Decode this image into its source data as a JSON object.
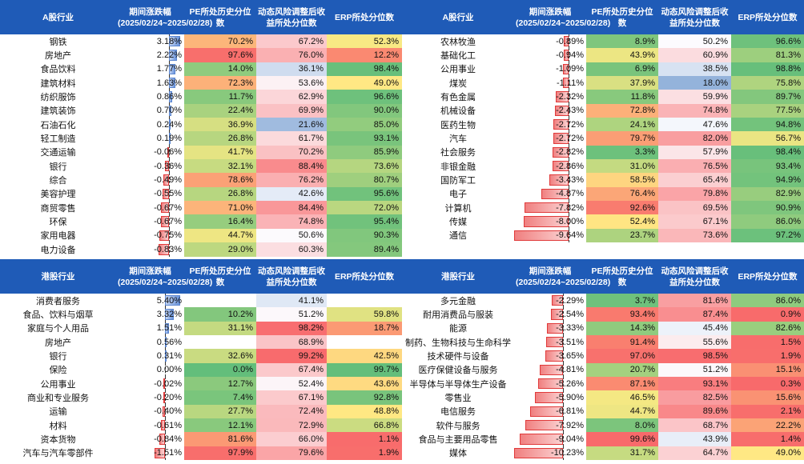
{
  "headers": {
    "a_share": [
      "A股行业",
      "期间涨跌幅\n(2025/02/24~2025/02/28)",
      "PE所处历史分位数",
      "动态风险调整后收益所处分位数",
      "ERP所处分位数"
    ],
    "hk_share": [
      "港股行业",
      "期间涨跌幅\n(2025/02/24~2025/02/28)",
      "PE所处历史分位数",
      "动态风险调整后收益所处分位数",
      "ERP所处分位数"
    ]
  },
  "chg_scale": {
    "a_max": 9.64,
    "hk_max": 10.2
  },
  "a_left": [
    {
      "industry": "钢铁",
      "chg": 3.18,
      "chg_label": "3.18%",
      "pe": "70.2%",
      "risk": "67.2%",
      "erp": "52.3%"
    },
    {
      "industry": "房地产",
      "chg": 2.22,
      "chg_label": "2.22%",
      "pe": "97.6%",
      "risk": "76.0%",
      "erp": "12.2%"
    },
    {
      "industry": "食品饮料",
      "chg": 1.77,
      "chg_label": "1.77%",
      "pe": "14.0%",
      "risk": "36.1%",
      "erp": "98.4%"
    },
    {
      "industry": "建筑材料",
      "chg": 1.63,
      "chg_label": "1.63%",
      "pe": "72.3%",
      "risk": "53.6%",
      "erp": "49.0%"
    },
    {
      "industry": "纺织服饰",
      "chg": 0.86,
      "chg_label": "0.86%",
      "pe": "11.7%",
      "risk": "62.9%",
      "erp": "96.6%"
    },
    {
      "industry": "建筑装饰",
      "chg": 0.7,
      "chg_label": "0.70%",
      "pe": "22.4%",
      "risk": "69.9%",
      "erp": "90.0%"
    },
    {
      "industry": "石油石化",
      "chg": 0.24,
      "chg_label": "0.24%",
      "pe": "36.9%",
      "risk": "21.6%",
      "erp": "85.0%"
    },
    {
      "industry": "轻工制造",
      "chg": 0.19,
      "chg_label": "0.19%",
      "pe": "26.8%",
      "risk": "61.7%",
      "erp": "93.1%"
    },
    {
      "industry": "交通运输",
      "chg": -0.06,
      "chg_label": "-0.06%",
      "pe": "41.7%",
      "risk": "70.2%",
      "erp": "85.9%"
    },
    {
      "industry": "银行",
      "chg": -0.36,
      "chg_label": "-0.36%",
      "pe": "32.1%",
      "risk": "88.4%",
      "erp": "73.6%"
    },
    {
      "industry": "综合",
      "chg": -0.49,
      "chg_label": "-0.49%",
      "pe": "78.6%",
      "risk": "76.2%",
      "erp": "80.7%"
    },
    {
      "industry": "美容护理",
      "chg": -0.55,
      "chg_label": "-0.55%",
      "pe": "26.8%",
      "risk": "42.6%",
      "erp": "95.6%"
    },
    {
      "industry": "商贸零售",
      "chg": -0.67,
      "chg_label": "-0.67%",
      "pe": "71.0%",
      "risk": "84.4%",
      "erp": "72.0%"
    },
    {
      "industry": "环保",
      "chg": -0.67,
      "chg_label": "-0.67%",
      "pe": "16.4%",
      "risk": "74.8%",
      "erp": "95.4%"
    },
    {
      "industry": "家用电器",
      "chg": -0.75,
      "chg_label": "-0.75%",
      "pe": "44.7%",
      "risk": "50.6%",
      "erp": "90.3%"
    },
    {
      "industry": "电力设备",
      "chg": -0.83,
      "chg_label": "-0.83%",
      "pe": "29.0%",
      "risk": "60.3%",
      "erp": "89.4%"
    }
  ],
  "a_right": [
    {
      "industry": "农林牧渔",
      "chg": -0.89,
      "chg_label": "-0.89%",
      "pe": "8.9%",
      "risk": "50.2%",
      "erp": "96.6%"
    },
    {
      "industry": "基础化工",
      "chg": -0.94,
      "chg_label": "-0.94%",
      "pe": "43.9%",
      "risk": "60.9%",
      "erp": "81.3%"
    },
    {
      "industry": "公用事业",
      "chg": -1.09,
      "chg_label": "-1.09%",
      "pe": "6.9%",
      "risk": "38.5%",
      "erp": "98.8%"
    },
    {
      "industry": "煤炭",
      "chg": -1.11,
      "chg_label": "-1.11%",
      "pe": "37.9%",
      "risk": "18.0%",
      "erp": "75.8%"
    },
    {
      "industry": "有色金属",
      "chg": -2.32,
      "chg_label": "-2.32%",
      "pe": "11.8%",
      "risk": "59.9%",
      "erp": "89.7%"
    },
    {
      "industry": "机械设备",
      "chg": -2.43,
      "chg_label": "-2.43%",
      "pe": "72.8%",
      "risk": "74.8%",
      "erp": "77.5%"
    },
    {
      "industry": "医药生物",
      "chg": -2.72,
      "chg_label": "-2.72%",
      "pe": "24.1%",
      "risk": "47.6%",
      "erp": "94.8%"
    },
    {
      "industry": "汽车",
      "chg": -2.72,
      "chg_label": "-2.72%",
      "pe": "79.7%",
      "risk": "82.0%",
      "erp": "56.7%"
    },
    {
      "industry": "社会服务",
      "chg": -2.82,
      "chg_label": "-2.82%",
      "pe": "3.3%",
      "risk": "57.9%",
      "erp": "98.4%"
    },
    {
      "industry": "非银金融",
      "chg": -2.86,
      "chg_label": "-2.86%",
      "pe": "31.0%",
      "risk": "76.5%",
      "erp": "93.4%"
    },
    {
      "industry": "国防军工",
      "chg": -3.43,
      "chg_label": "-3.43%",
      "pe": "58.5%",
      "risk": "65.4%",
      "erp": "94.9%"
    },
    {
      "industry": "电子",
      "chg": -4.87,
      "chg_label": "-4.87%",
      "pe": "76.4%",
      "risk": "79.8%",
      "erp": "82.9%"
    },
    {
      "industry": "计算机",
      "chg": -7.82,
      "chg_label": "-7.82%",
      "pe": "92.6%",
      "risk": "69.5%",
      "erp": "90.9%"
    },
    {
      "industry": "传媒",
      "chg": -8.0,
      "chg_label": "-8.00%",
      "pe": "52.4%",
      "risk": "67.1%",
      "erp": "86.0%"
    },
    {
      "industry": "通信",
      "chg": -9.64,
      "chg_label": "-9.64%",
      "pe": "23.7%",
      "risk": "73.6%",
      "erp": "97.2%"
    }
  ],
  "hk_left": [
    {
      "industry": "消费者服务",
      "chg": 5.4,
      "chg_label": "5.40%",
      "pe": "",
      "risk": "41.1%",
      "erp": ""
    },
    {
      "industry": "食品、饮料与烟草",
      "chg": 3.32,
      "chg_label": "3.32%",
      "pe": "10.2%",
      "risk": "51.2%",
      "erp": "59.8%"
    },
    {
      "industry": "家庭与个人用品",
      "chg": 1.51,
      "chg_label": "1.51%",
      "pe": "31.1%",
      "risk": "98.2%",
      "erp": "18.7%"
    },
    {
      "industry": "房地产",
      "chg": 0.56,
      "chg_label": "0.56%",
      "pe": "",
      "risk": "68.9%",
      "erp": ""
    },
    {
      "industry": "银行",
      "chg": 0.31,
      "chg_label": "0.31%",
      "pe": "32.6%",
      "risk": "99.2%",
      "erp": "42.5%"
    },
    {
      "industry": "保险",
      "chg": 0.0,
      "chg_label": "0.00%",
      "pe": "0.0%",
      "risk": "67.4%",
      "erp": "99.7%"
    },
    {
      "industry": "公用事业",
      "chg": -0.02,
      "chg_label": "-0.02%",
      "pe": "12.7%",
      "risk": "52.4%",
      "erp": "43.6%"
    },
    {
      "industry": "商业和专业服务",
      "chg": -0.2,
      "chg_label": "-0.20%",
      "pe": "7.4%",
      "risk": "67.1%",
      "erp": "92.8%"
    },
    {
      "industry": "运输",
      "chg": -0.4,
      "chg_label": "-0.40%",
      "pe": "27.7%",
      "risk": "72.4%",
      "erp": "48.8%"
    },
    {
      "industry": "材料",
      "chg": -0.61,
      "chg_label": "-0.61%",
      "pe": "12.1%",
      "risk": "72.9%",
      "erp": "66.8%"
    },
    {
      "industry": "资本货物",
      "chg": -0.84,
      "chg_label": "-0.84%",
      "pe": "81.6%",
      "risk": "66.0%",
      "erp": "1.1%"
    },
    {
      "industry": "汽车与汽车零部件",
      "chg": -1.51,
      "chg_label": "-1.51%",
      "pe": "97.9%",
      "risk": "79.6%",
      "erp": "1.9%"
    }
  ],
  "hk_right": [
    {
      "industry": "多元金融",
      "chg": -2.29,
      "chg_label": "-2.29%",
      "pe": "3.7%",
      "risk": "81.6%",
      "erp": "86.0%"
    },
    {
      "industry": "耐用消费品与服装",
      "chg": -2.54,
      "chg_label": "-2.54%",
      "pe": "93.4%",
      "risk": "87.4%",
      "erp": "0.9%"
    },
    {
      "industry": "能源",
      "chg": -3.33,
      "chg_label": "-3.33%",
      "pe": "14.3%",
      "risk": "45.4%",
      "erp": "82.6%"
    },
    {
      "industry": "制药、生物科技与生命科学",
      "chg": -3.51,
      "chg_label": "-3.51%",
      "pe": "91.4%",
      "risk": "55.6%",
      "erp": "1.5%"
    },
    {
      "industry": "技术硬件与设备",
      "chg": -3.65,
      "chg_label": "-3.65%",
      "pe": "97.0%",
      "risk": "98.5%",
      "erp": "1.9%"
    },
    {
      "industry": "医疗保健设备与服务",
      "chg": -4.81,
      "chg_label": "-4.81%",
      "pe": "20.7%",
      "risk": "51.2%",
      "erp": "15.1%"
    },
    {
      "industry": "半导体与半导体生产设备",
      "chg": -5.26,
      "chg_label": "-5.26%",
      "pe": "87.1%",
      "risk": "93.1%",
      "erp": "0.3%"
    },
    {
      "industry": "零售业",
      "chg": -5.9,
      "chg_label": "-5.90%",
      "pe": "46.5%",
      "risk": "82.5%",
      "erp": "15.6%"
    },
    {
      "industry": "电信服务",
      "chg": -6.81,
      "chg_label": "-6.81%",
      "pe": "44.7%",
      "risk": "89.6%",
      "erp": "2.1%"
    },
    {
      "industry": "软件与服务",
      "chg": -7.92,
      "chg_label": "-7.92%",
      "pe": "8.0%",
      "risk": "68.7%",
      "erp": "22.2%"
    },
    {
      "industry": "食品与主要用品零售",
      "chg": -9.04,
      "chg_label": "-9.04%",
      "pe": "99.6%",
      "risk": "43.9%",
      "erp": "1.4%"
    },
    {
      "industry": "媒体",
      "chg": -10.23,
      "chg_label": "-10.23%",
      "pe": "31.7%",
      "risk": "64.7%",
      "erp": "49.0%"
    }
  ]
}
